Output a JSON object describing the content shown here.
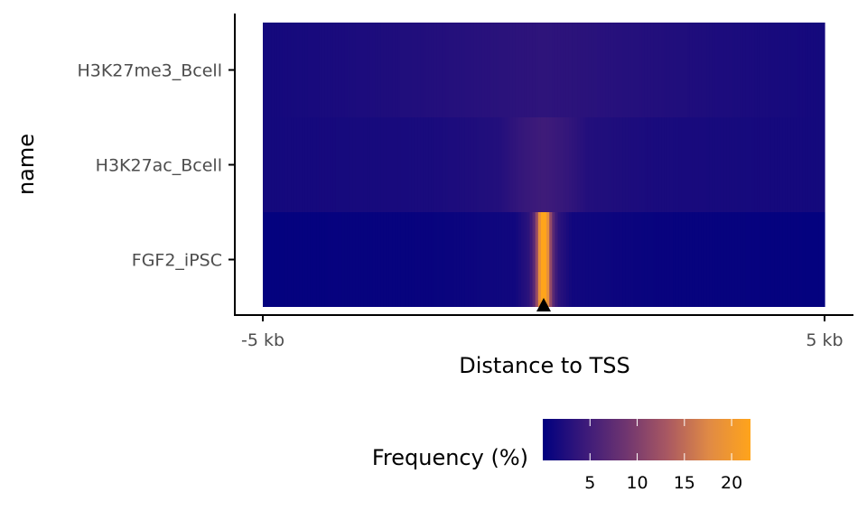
{
  "chart_data": {
    "type": "heatmap",
    "title": "",
    "xlabel": "Distance to TSS",
    "ylabel": "name",
    "x_ticks": [
      "-5 kb",
      "5 kb"
    ],
    "xlim": [
      -5000,
      5000
    ],
    "x_unit": "bp",
    "categories": [
      "H3K27me3_Bcell",
      "H3K27ac_Bcell",
      "FGF2_iPSC"
    ],
    "tss_marker": {
      "x": 0,
      "symbol": "triangle"
    },
    "colorbar": {
      "title": "Frequency (%)",
      "ticks": [
        5,
        10,
        15,
        20
      ],
      "range": [
        0,
        22
      ],
      "colors": [
        "#00007f",
        "#3a197a",
        "#6f3570",
        "#a95862",
        "#e08a45",
        "#ffa41b"
      ],
      "position": "bottom"
    },
    "series": [
      {
        "name": "H3K27me3_Bcell",
        "profile": [
          {
            "x": -5000,
            "value": 1.5
          },
          {
            "x": -3000,
            "value": 2.2
          },
          {
            "x": -1500,
            "value": 2.8
          },
          {
            "x": -500,
            "value": 3.3
          },
          {
            "x": 0,
            "value": 3.5
          },
          {
            "x": 500,
            "value": 3.3
          },
          {
            "x": 1500,
            "value": 2.8
          },
          {
            "x": 3000,
            "value": 2.2
          },
          {
            "x": 5000,
            "value": 1.5
          }
        ]
      },
      {
        "name": "H3K27ac_Bcell",
        "profile": [
          {
            "x": -5000,
            "value": 1.5
          },
          {
            "x": -2000,
            "value": 1.9
          },
          {
            "x": -800,
            "value": 2.6
          },
          {
            "x": -400,
            "value": 4.0
          },
          {
            "x": 0,
            "value": 4.8
          },
          {
            "x": 400,
            "value": 4.0
          },
          {
            "x": 800,
            "value": 2.6
          },
          {
            "x": 2000,
            "value": 1.9
          },
          {
            "x": 5000,
            "value": 1.5
          }
        ]
      },
      {
        "name": "FGF2_iPSC",
        "profile": [
          {
            "x": -5000,
            "value": 0.3
          },
          {
            "x": -2000,
            "value": 0.6
          },
          {
            "x": -500,
            "value": 1.3
          },
          {
            "x": -250,
            "value": 3.5
          },
          {
            "x": -150,
            "value": 8.0
          },
          {
            "x": -50,
            "value": 22.0
          },
          {
            "x": 50,
            "value": 22.0
          },
          {
            "x": 150,
            "value": 8.0
          },
          {
            "x": 250,
            "value": 3.5
          },
          {
            "x": 500,
            "value": 1.3
          },
          {
            "x": 2000,
            "value": 0.6
          },
          {
            "x": 5000,
            "value": 0.3
          }
        ]
      }
    ]
  }
}
